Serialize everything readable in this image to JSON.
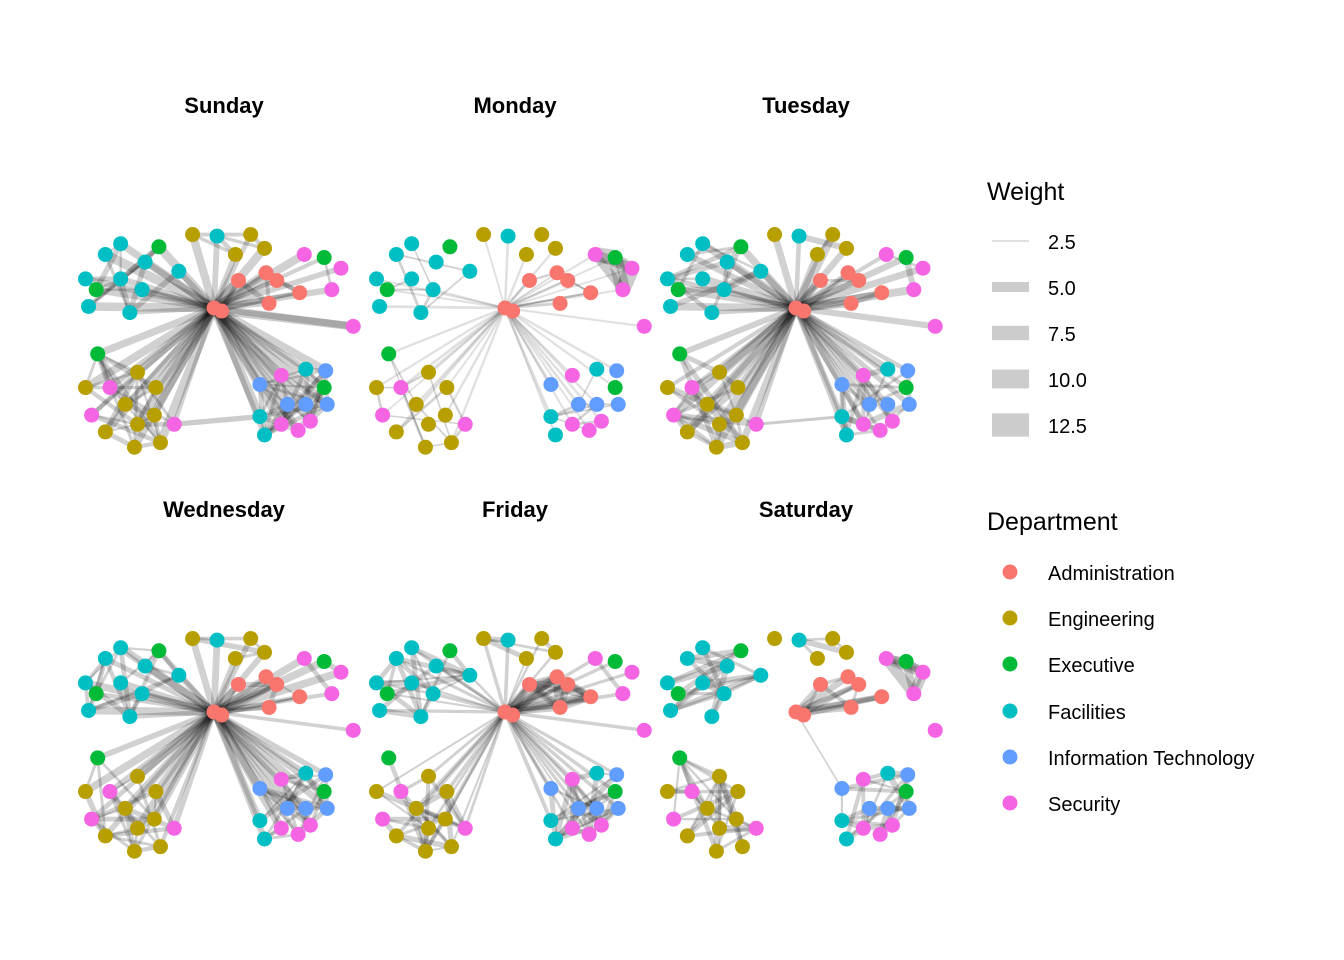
{
  "chart_data": {
    "type": "network",
    "title": "",
    "panels": [
      "Sunday",
      "Monday",
      "Tuesday",
      "Wednesday",
      "Friday",
      "Saturday"
    ],
    "legend": {
      "weight": {
        "title": "Weight",
        "entries": [
          {
            "label": "2.5",
            "value": 2.5
          },
          {
            "label": "5.0",
            "value": 5.0
          },
          {
            "label": "7.5",
            "value": 7.5
          },
          {
            "label": "10.0",
            "value": 10.0
          },
          {
            "label": "12.5",
            "value": 12.5
          }
        ]
      },
      "department": {
        "title": "Department",
        "entries": [
          {
            "label": "Administration",
            "color": "#F8766D"
          },
          {
            "label": "Engineering",
            "color": "#B79F00"
          },
          {
            "label": "Executive",
            "color": "#00BA38"
          },
          {
            "label": "Facilities",
            "color": "#00BFC4"
          },
          {
            "label": "Information Technology",
            "color": "#619CFF"
          },
          {
            "label": "Security",
            "color": "#F564E3"
          }
        ]
      }
    },
    "edge_color": "#000000",
    "node_layout_note": "shared layout across panels; coordinates in layout units",
    "nodes": [
      {
        "id": 0,
        "dept": "Administration",
        "x": 0.0,
        "y": 0.0
      },
      {
        "id": 1,
        "dept": "Administration",
        "x": 0.5,
        "y": 0.2
      },
      {
        "id": 2,
        "dept": "Administration",
        "x": 3.4,
        "y": -2.3
      },
      {
        "id": 3,
        "dept": "Administration",
        "x": 1.6,
        "y": -1.8
      },
      {
        "id": 4,
        "dept": "Administration",
        "x": 4.1,
        "y": -1.8
      },
      {
        "id": 5,
        "dept": "Administration",
        "x": 5.6,
        "y": -1.0
      },
      {
        "id": 6,
        "dept": "Administration",
        "x": 3.6,
        "y": -0.3
      },
      {
        "id": 7,
        "dept": "Engineering",
        "x": -1.4,
        "y": -4.8
      },
      {
        "id": 8,
        "dept": "Engineering",
        "x": 2.4,
        "y": -4.8
      },
      {
        "id": 9,
        "dept": "Engineering",
        "x": 1.4,
        "y": -3.5
      },
      {
        "id": 10,
        "dept": "Engineering",
        "x": 3.3,
        "y": -3.9
      },
      {
        "id": 11,
        "dept": "Facilities",
        "x": 0.2,
        "y": -4.7
      },
      {
        "id": 12,
        "dept": "Facilities",
        "x": -6.1,
        "y": -4.2
      },
      {
        "id": 13,
        "dept": "Executive",
        "x": -3.6,
        "y": -4.0
      },
      {
        "id": 14,
        "dept": "Facilities",
        "x": -7.1,
        "y": -3.5
      },
      {
        "id": 15,
        "dept": "Facilities",
        "x": -4.5,
        "y": -3.0
      },
      {
        "id": 16,
        "dept": "Facilities",
        "x": -2.3,
        "y": -2.4
      },
      {
        "id": 17,
        "dept": "Facilities",
        "x": -8.4,
        "y": -1.9
      },
      {
        "id": 18,
        "dept": "Facilities",
        "x": -6.1,
        "y": -1.9
      },
      {
        "id": 19,
        "dept": "Executive",
        "x": -7.7,
        "y": -1.2
      },
      {
        "id": 20,
        "dept": "Facilities",
        "x": -4.7,
        "y": -1.2
      },
      {
        "id": 21,
        "dept": "Facilities",
        "x": -8.2,
        "y": -0.1
      },
      {
        "id": 22,
        "dept": "Facilities",
        "x": -5.5,
        "y": 0.3
      },
      {
        "id": 23,
        "dept": "Security",
        "x": 5.9,
        "y": -3.5
      },
      {
        "id": 24,
        "dept": "Executive",
        "x": 7.2,
        "y": -3.3
      },
      {
        "id": 25,
        "dept": "Security",
        "x": 8.3,
        "y": -2.6
      },
      {
        "id": 26,
        "dept": "Security",
        "x": 7.7,
        "y": -1.2
      },
      {
        "id": 27,
        "dept": "Security",
        "x": 9.1,
        "y": 1.2
      },
      {
        "id": 28,
        "dept": "Executive",
        "x": -7.6,
        "y": 3.0
      },
      {
        "id": 29,
        "dept": "Engineering",
        "x": -5.0,
        "y": 4.2
      },
      {
        "id": 30,
        "dept": "Engineering",
        "x": -8.4,
        "y": 5.2
      },
      {
        "id": 31,
        "dept": "Security",
        "x": -6.8,
        "y": 5.2
      },
      {
        "id": 32,
        "dept": "Engineering",
        "x": -3.8,
        "y": 5.2
      },
      {
        "id": 33,
        "dept": "Engineering",
        "x": -5.8,
        "y": 6.3
      },
      {
        "id": 34,
        "dept": "Security",
        "x": -8.0,
        "y": 7.0
      },
      {
        "id": 35,
        "dept": "Engineering",
        "x": -3.9,
        "y": 7.0
      },
      {
        "id": 36,
        "dept": "Engineering",
        "x": -5.0,
        "y": 7.6
      },
      {
        "id": 37,
        "dept": "Security",
        "x": -2.6,
        "y": 7.6
      },
      {
        "id": 38,
        "dept": "Engineering",
        "x": -7.1,
        "y": 8.1
      },
      {
        "id": 39,
        "dept": "Engineering",
        "x": -5.2,
        "y": 9.1
      },
      {
        "id": 40,
        "dept": "Engineering",
        "x": -3.5,
        "y": 8.8
      },
      {
        "id": 41,
        "dept": "Facilities",
        "x": 6.0,
        "y": 4.0
      },
      {
        "id": 42,
        "dept": "Information Technology",
        "x": 7.3,
        "y": 4.1
      },
      {
        "id": 43,
        "dept": "Security",
        "x": 4.4,
        "y": 4.4
      },
      {
        "id": 44,
        "dept": "Information Technology",
        "x": 3.0,
        "y": 5.0
      },
      {
        "id": 45,
        "dept": "Executive",
        "x": 7.2,
        "y": 5.2
      },
      {
        "id": 46,
        "dept": "Information Technology",
        "x": 4.8,
        "y": 6.3
      },
      {
        "id": 47,
        "dept": "Information Technology",
        "x": 6.0,
        "y": 6.3
      },
      {
        "id": 48,
        "dept": "Information Technology",
        "x": 7.4,
        "y": 6.3
      },
      {
        "id": 49,
        "dept": "Facilities",
        "x": 3.0,
        "y": 7.1
      },
      {
        "id": 50,
        "dept": "Security",
        "x": 4.4,
        "y": 7.6
      },
      {
        "id": 51,
        "dept": "Security",
        "x": 6.3,
        "y": 7.4
      },
      {
        "id": 52,
        "dept": "Security",
        "x": 5.5,
        "y": 8.0
      },
      {
        "id": 53,
        "dept": "Facilities",
        "x": 3.3,
        "y": 8.3
      }
    ],
    "edges_by_panel": {
      "Sunday": {
        "hub_weight": 4.0,
        "cluster_weight": 2.5,
        "spokes": "all",
        "bridges": [
          [
            37,
            49,
            3
          ],
          [
            1,
            27,
            5
          ]
        ]
      },
      "Monday": {
        "hub_weight": 1.0,
        "cluster_weight": 1.0,
        "spokes": "sparse",
        "heavy_clusters": [
          [
            23,
            24,
            25,
            26,
            10
          ]
        ]
      },
      "Tuesday": {
        "hub_weight": 3.5,
        "cluster_weight": 3.0,
        "spokes": "all",
        "bridges": [
          [
            37,
            49,
            1.5
          ]
        ]
      },
      "Wednesday": {
        "hub_weight": 3.5,
        "cluster_weight": 2.5,
        "spokes": "all"
      },
      "Friday": {
        "hub_weight": 1.5,
        "cluster_weight": 2.5,
        "spokes": "many",
        "heavy_clusters": [
          [
            0,
            2,
            3,
            4,
            5,
            6,
            6
          ]
        ]
      },
      "Saturday": {
        "hub_weight": 3.0,
        "cluster_weight": 3.0,
        "spokes": "admin-only",
        "heavy_clusters": [
          [
            23,
            24,
            25,
            26,
            8
          ]
        ]
      }
    }
  }
}
